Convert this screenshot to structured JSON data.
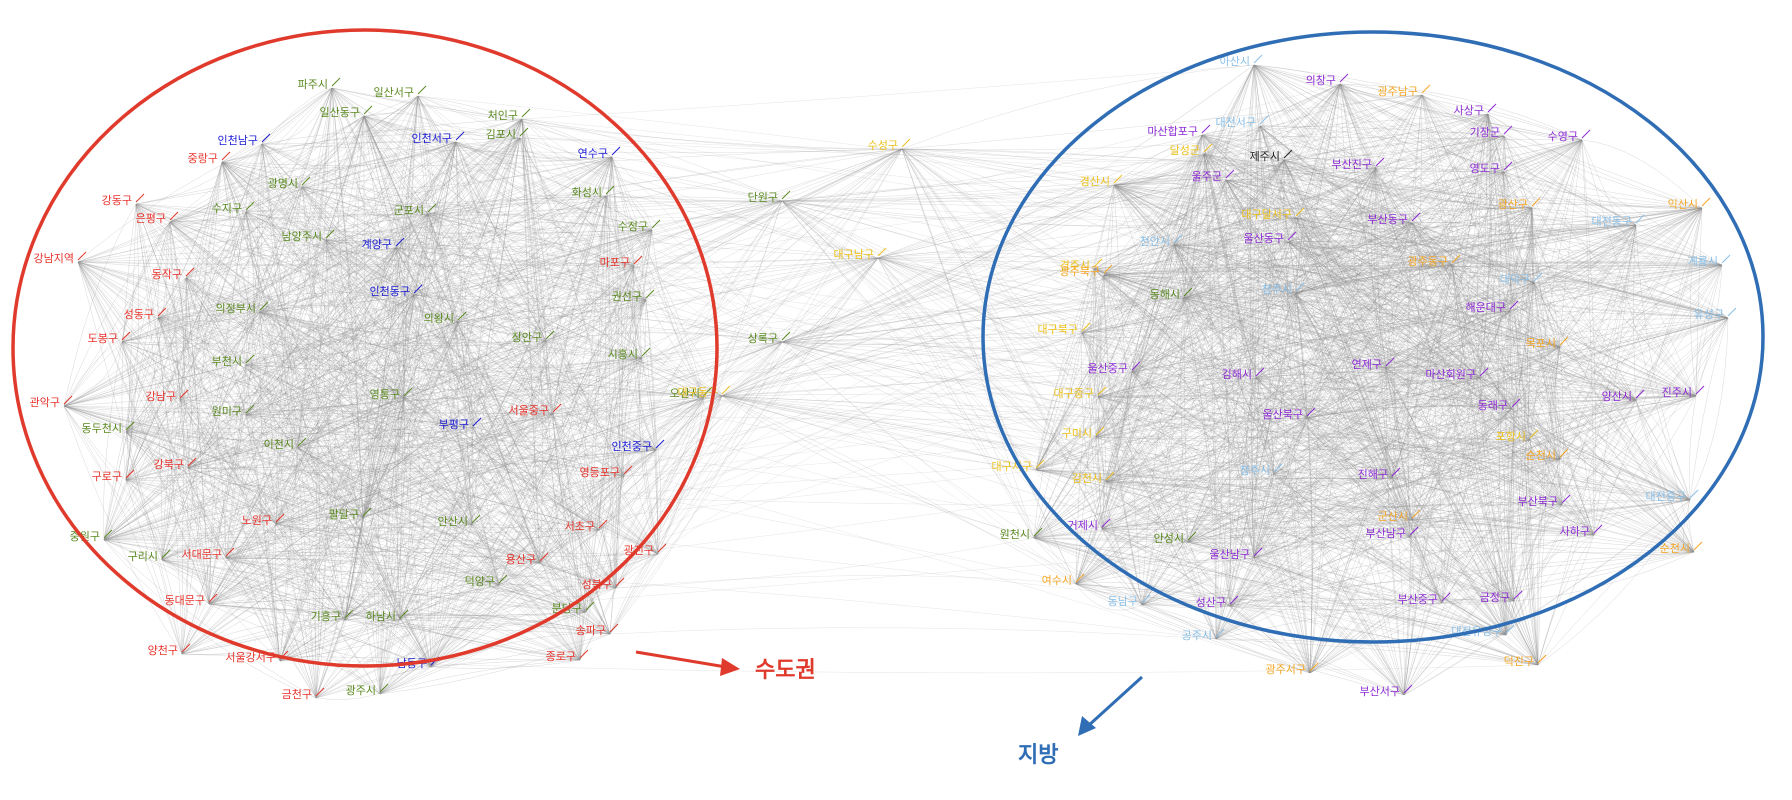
{
  "colors": {
    "capital_ring": "#e03a2c",
    "region_ring": "#2f6db5",
    "edge": "#8f8f8f",
    "red": "#e8332b",
    "green": "#5b8a20",
    "blue": "#1b1bd6",
    "yellow": "#ecc11a",
    "orange": "#f5a623",
    "purple": "#8e2bd6",
    "lightblue": "#88bfe8",
    "black": "#222222"
  },
  "clusters": {
    "capital": {
      "label": "수도권"
    },
    "region": {
      "label": "지방"
    }
  },
  "nodes": [
    {
      "id": "파주시",
      "c": "green"
    },
    {
      "id": "일산서구",
      "c": "green"
    },
    {
      "id": "일산동구",
      "c": "green"
    },
    {
      "id": "처인구",
      "c": "green"
    },
    {
      "id": "인천남구",
      "c": "blue"
    },
    {
      "id": "인천서구",
      "c": "blue"
    },
    {
      "id": "김포시",
      "c": "green"
    },
    {
      "id": "연수구",
      "c": "blue"
    },
    {
      "id": "중랑구",
      "c": "red"
    },
    {
      "id": "광명시",
      "c": "green"
    },
    {
      "id": "강동구",
      "c": "red"
    },
    {
      "id": "수지구",
      "c": "green"
    },
    {
      "id": "군포시",
      "c": "green"
    },
    {
      "id": "화성시",
      "c": "green"
    },
    {
      "id": "은평구",
      "c": "red"
    },
    {
      "id": "남양주시",
      "c": "green"
    },
    {
      "id": "수정구",
      "c": "green"
    },
    {
      "id": "계양구",
      "c": "blue"
    },
    {
      "id": "강남지역",
      "c": "red"
    },
    {
      "id": "동작구",
      "c": "red"
    },
    {
      "id": "마포구",
      "c": "red"
    },
    {
      "id": "인천동구",
      "c": "blue"
    },
    {
      "id": "권선구",
      "c": "green"
    },
    {
      "id": "성동구",
      "c": "red"
    },
    {
      "id": "의정부시",
      "c": "green"
    },
    {
      "id": "의왕시",
      "c": "green"
    },
    {
      "id": "도봉구",
      "c": "red"
    },
    {
      "id": "장안구",
      "c": "green"
    },
    {
      "id": "시흥시",
      "c": "green"
    },
    {
      "id": "부천시",
      "c": "green"
    },
    {
      "id": "관악구",
      "c": "red"
    },
    {
      "id": "강남구",
      "c": "red"
    },
    {
      "id": "영통구",
      "c": "green"
    },
    {
      "id": "서울중구",
      "c": "red"
    },
    {
      "id": "오산시",
      "c": "green"
    },
    {
      "id": "동두천시",
      "c": "green"
    },
    {
      "id": "부평구",
      "c": "blue"
    },
    {
      "id": "인천중구",
      "c": "blue"
    },
    {
      "id": "이천시",
      "c": "green"
    },
    {
      "id": "구로구",
      "c": "red"
    },
    {
      "id": "강북구",
      "c": "red"
    },
    {
      "id": "영등포구",
      "c": "red"
    },
    {
      "id": "노원구",
      "c": "red"
    },
    {
      "id": "팔달구",
      "c": "green"
    },
    {
      "id": "원미구",
      "c": "green"
    },
    {
      "id": "중원구",
      "c": "green"
    },
    {
      "id": "서초구",
      "c": "red"
    },
    {
      "id": "구리시",
      "c": "green"
    },
    {
      "id": "서대문구",
      "c": "red"
    },
    {
      "id": "광진구",
      "c": "red"
    },
    {
      "id": "용산구",
      "c": "red"
    },
    {
      "id": "안산시",
      "c": "green"
    },
    {
      "id": "덕양구",
      "c": "green"
    },
    {
      "id": "동대문구",
      "c": "red"
    },
    {
      "id": "성북구",
      "c": "red"
    },
    {
      "id": "기흥구",
      "c": "green"
    },
    {
      "id": "하남시",
      "c": "green"
    },
    {
      "id": "분당구",
      "c": "green"
    },
    {
      "id": "양천구",
      "c": "red"
    },
    {
      "id": "송파구",
      "c": "red"
    },
    {
      "id": "서울강서구",
      "c": "red"
    },
    {
      "id": "종로구",
      "c": "red"
    },
    {
      "id": "남동구",
      "c": "blue"
    },
    {
      "id": "금천구",
      "c": "red"
    },
    {
      "id": "광주시",
      "c": "green"
    },
    {
      "id": "단원구",
      "c": "green"
    },
    {
      "id": "상록구",
      "c": "green"
    },
    {
      "id": "수성구",
      "c": "yellow"
    },
    {
      "id": "대구남구",
      "c": "yellow"
    },
    {
      "id": "대구동구",
      "c": "yellow"
    },
    {
      "id": "아산시",
      "c": "lightblue"
    },
    {
      "id": "의창구",
      "c": "purple"
    },
    {
      "id": "광주남구",
      "c": "orange"
    },
    {
      "id": "사상구",
      "c": "purple"
    },
    {
      "id": "마산합포구",
      "c": "purple"
    },
    {
      "id": "대전서구",
      "c": "lightblue"
    },
    {
      "id": "기장군",
      "c": "purple"
    },
    {
      "id": "수영구",
      "c": "purple"
    },
    {
      "id": "달성군",
      "c": "yellow"
    },
    {
      "id": "제주시",
      "c": "black"
    },
    {
      "id": "부산진구",
      "c": "purple"
    },
    {
      "id": "울주군",
      "c": "purple"
    },
    {
      "id": "영도구",
      "c": "purple"
    },
    {
      "id": "경산시",
      "c": "yellow"
    },
    {
      "id": "광산구",
      "c": "orange"
    },
    {
      "id": "익산시",
      "c": "orange"
    },
    {
      "id": "부산동구",
      "c": "purple"
    },
    {
      "id": "대구달서구",
      "c": "yellow"
    },
    {
      "id": "대전동구",
      "c": "lightblue"
    },
    {
      "id": "울산동구",
      "c": "purple"
    },
    {
      "id": "천안시",
      "c": "lightblue"
    },
    {
      "id": "경주시",
      "c": "yellow"
    },
    {
      "id": "계룡시",
      "c": "lightblue"
    },
    {
      "id": "광주동구",
      "c": "orange"
    },
    {
      "id": "대덕구",
      "c": "lightblue"
    },
    {
      "id": "광주북구",
      "c": "orange"
    },
    {
      "id": "청주시",
      "c": "lightblue"
    },
    {
      "id": "동해시",
      "c": "green"
    },
    {
      "id": "해운대구",
      "c": "purple"
    },
    {
      "id": "유성구",
      "c": "lightblue"
    },
    {
      "id": "대구북구",
      "c": "yellow"
    },
    {
      "id": "목포시",
      "c": "orange"
    },
    {
      "id": "울산중구",
      "c": "purple"
    },
    {
      "id": "연제구",
      "c": "purple"
    },
    {
      "id": "김해시",
      "c": "purple"
    },
    {
      "id": "마산회원구",
      "c": "purple"
    },
    {
      "id": "대구중구",
      "c": "yellow"
    },
    {
      "id": "양산시",
      "c": "purple"
    },
    {
      "id": "진주시",
      "c": "purple"
    },
    {
      "id": "동래구",
      "c": "purple"
    },
    {
      "id": "울산북구",
      "c": "purple"
    },
    {
      "id": "구미시",
      "c": "yellow"
    },
    {
      "id": "포항시",
      "c": "yellow"
    },
    {
      "id": "순천시",
      "c": "orange"
    },
    {
      "id": "대구서구",
      "c": "yellow"
    },
    {
      "id": "김천시",
      "c": "yellow"
    },
    {
      "id": "진해구",
      "c": "purple"
    },
    {
      "id": "청주시2",
      "c": "lightblue"
    },
    {
      "id": "부산북구",
      "c": "purple"
    },
    {
      "id": "대전중구",
      "c": "lightblue"
    },
    {
      "id": "군산시",
      "c": "orange"
    },
    {
      "id": "사하구",
      "c": "purple"
    },
    {
      "id": "거제시",
      "c": "purple"
    },
    {
      "id": "안성시",
      "c": "green"
    },
    {
      "id": "원천시",
      "c": "green"
    },
    {
      "id": "부산남구",
      "c": "purple"
    },
    {
      "id": "울산남구",
      "c": "purple"
    },
    {
      "id": "순천시2",
      "c": "orange"
    },
    {
      "id": "여수시",
      "c": "orange"
    },
    {
      "id": "동남구",
      "c": "lightblue"
    },
    {
      "id": "성산구",
      "c": "purple"
    },
    {
      "id": "부산중구",
      "c": "purple"
    },
    {
      "id": "금정구",
      "c": "purple"
    },
    {
      "id": "공주시",
      "c": "lightblue"
    },
    {
      "id": "대전유성구",
      "c": "lightblue"
    },
    {
      "id": "덕진구",
      "c": "orange"
    },
    {
      "id": "광주서구",
      "c": "orange"
    },
    {
      "id": "부산서구",
      "c": "purple"
    }
  ]
}
